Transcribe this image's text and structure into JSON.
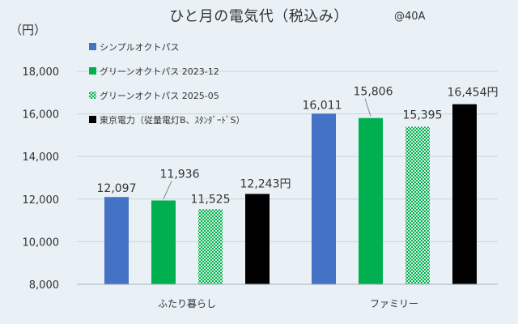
{
  "header": {
    "title": "ひと月の電気代（税込み）",
    "unit": "（円）",
    "amperage": "@40A"
  },
  "chart_data": {
    "type": "bar",
    "title": "ひと月の電気代（税込み）",
    "ylabel": "（円）",
    "xlabel": "",
    "ylim": [
      8000,
      18000
    ],
    "yticks": [
      8000,
      10000,
      12000,
      14000,
      16000,
      18000
    ],
    "ytick_labels": [
      "8,000",
      "10,000",
      "12,000",
      "14,000",
      "16,000",
      "18,000"
    ],
    "grid": true,
    "legend_position": "top-left",
    "categories": [
      "ふたり暮らし",
      "ファミリー"
    ],
    "series": [
      {
        "name": "シンプルオクトパス",
        "values": [
          12097,
          16011
        ],
        "labels": [
          "12,097",
          "16,011"
        ],
        "color": "#4472c4",
        "pattern": "solid"
      },
      {
        "name": "グリーンオクトパス 2023-12",
        "values": [
          11936,
          15806
        ],
        "labels": [
          "11,936",
          "15,806"
        ],
        "color": "#00b050",
        "pattern": "solid"
      },
      {
        "name": "グリーンオクトパス 2025-05",
        "values": [
          11525,
          15395
        ],
        "labels": [
          "11,525",
          "15,395"
        ],
        "color": "#00b050",
        "pattern": "dotted"
      },
      {
        "name": "東京電力（従量電灯B、ｽﾀﾝﾀﾞｰﾄﾞS）",
        "values": [
          12243,
          16454
        ],
        "labels": [
          "12,243円",
          "16,454円"
        ],
        "color": "#000000",
        "pattern": "solid"
      }
    ]
  }
}
